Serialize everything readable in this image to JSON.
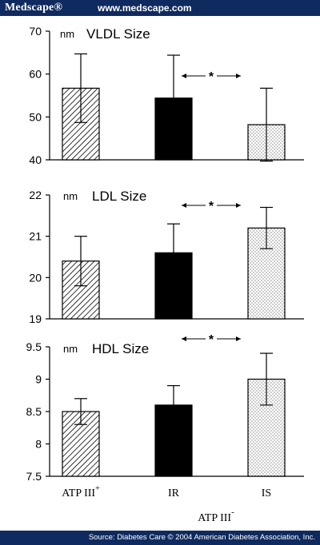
{
  "header": {
    "brand": "Medscape®",
    "url": "www.medscape.com"
  },
  "footer": {
    "source": "Source: Diabetes Care © 2004 American Diabetes Association, Inc."
  },
  "colors": {
    "bar_border": "#0f2a5e",
    "text": "#ffffff",
    "ink": "#000000"
  },
  "chart_data": [
    {
      "type": "bar",
      "title": "VLDL Size",
      "unit": "nm",
      "categories": [
        "ATP III+",
        "IR",
        "IS"
      ],
      "values": [
        56.7,
        54.4,
        48.2
      ],
      "errors": [
        8.0,
        10.0,
        8.5
      ],
      "ylim": [
        40,
        70
      ],
      "yticks": [
        40,
        50,
        60,
        70
      ],
      "patterns": [
        "hatch",
        "solid",
        "dots"
      ],
      "significance": {
        "between": [
          "IR",
          "IS"
        ],
        "symbol": "*"
      }
    },
    {
      "type": "bar",
      "title": "LDL Size",
      "unit": "nm",
      "categories": [
        "ATP III+",
        "IR",
        "IS"
      ],
      "values": [
        20.4,
        20.6,
        21.2
      ],
      "errors": [
        0.6,
        0.7,
        0.5
      ],
      "ylim": [
        19,
        22
      ],
      "yticks": [
        19,
        20,
        21,
        22
      ],
      "patterns": [
        "hatch",
        "solid",
        "dots"
      ],
      "significance": {
        "between": [
          "IR",
          "IS"
        ],
        "symbol": "*"
      }
    },
    {
      "type": "bar",
      "title": "HDL Size",
      "unit": "nm",
      "categories": [
        "ATP III+",
        "IR",
        "IS"
      ],
      "values": [
        8.5,
        8.6,
        9.0
      ],
      "errors": [
        0.2,
        0.3,
        0.4
      ],
      "ylim": [
        7.5,
        9.5
      ],
      "yticks": [
        7.5,
        8,
        8.5,
        9,
        9.5
      ],
      "patterns": [
        "hatch",
        "solid",
        "dots"
      ],
      "significance": {
        "between": [
          "IR",
          "IS"
        ],
        "symbol": "*"
      }
    }
  ],
  "x_labels": [
    {
      "text": "ATP III",
      "sup": "+"
    },
    {
      "text": "IR"
    },
    {
      "text": "IS"
    }
  ],
  "group_label": {
    "text": "ATP III",
    "sup": "-"
  }
}
